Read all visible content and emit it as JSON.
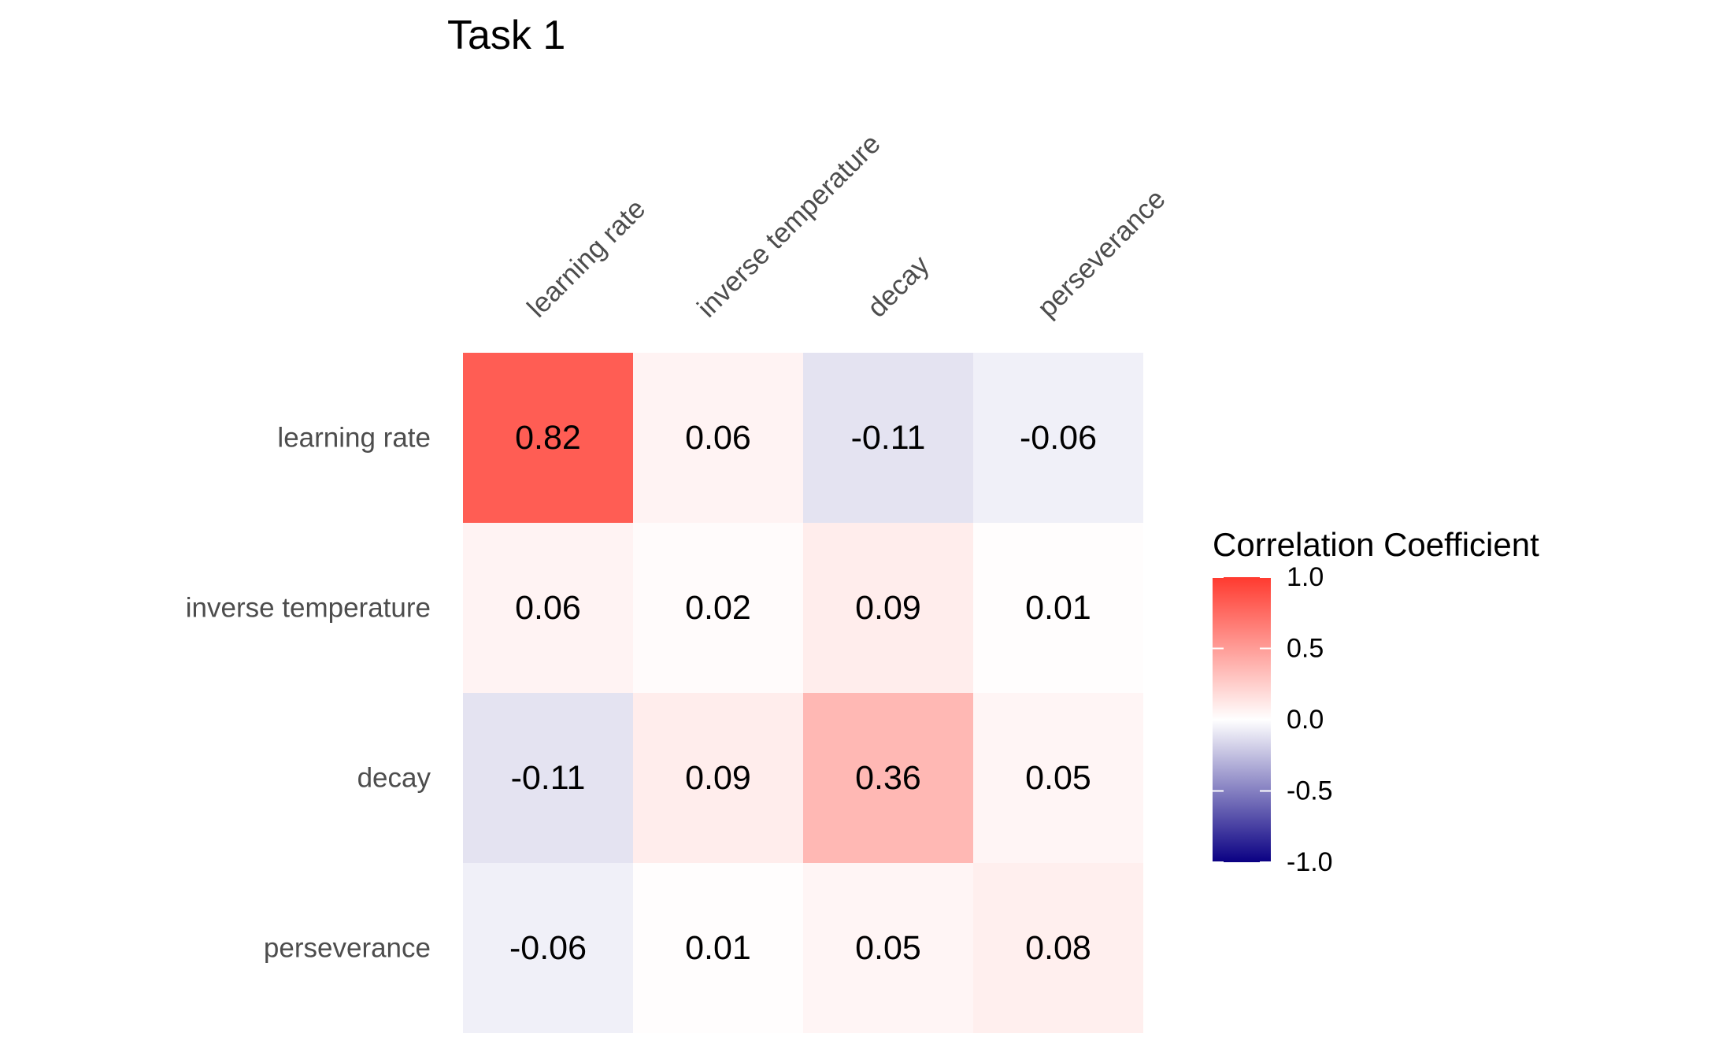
{
  "chart_data": {
    "type": "heatmap",
    "title": "Task 1",
    "rows": [
      "learning rate",
      "inverse temperature",
      "decay",
      "perseverance"
    ],
    "columns": [
      "learning rate",
      "inverse temperature",
      "decay",
      "perseverance"
    ],
    "values": [
      [
        0.82,
        0.06,
        -0.11,
        -0.06
      ],
      [
        0.06,
        0.02,
        0.09,
        0.01
      ],
      [
        -0.11,
        0.09,
        0.36,
        0.05
      ],
      [
        -0.06,
        0.01,
        0.05,
        0.08
      ]
    ],
    "labels": [
      [
        "0.82",
        "0.06",
        "-0.11",
        "-0.06"
      ],
      [
        "0.06",
        "0.02",
        "0.09",
        "0.01"
      ],
      [
        "-0.11",
        "0.09",
        "0.36",
        "0.05"
      ],
      [
        "-0.06",
        "0.01",
        "0.05",
        "0.08"
      ]
    ],
    "legend": {
      "title": "Correlation Coefficient",
      "placement": "right",
      "range": [
        -1.0,
        1.0
      ],
      "ticks": [
        1.0,
        0.5,
        0.0,
        -0.5,
        -1.0
      ],
      "tick_labels": [
        "1.0",
        "0.5",
        "0.0",
        "-0.5",
        "-1.0"
      ],
      "low_color": "#0a0083",
      "mid_color": "#ffffff",
      "high_color": "#ff3a2f"
    },
    "grid": false
  }
}
